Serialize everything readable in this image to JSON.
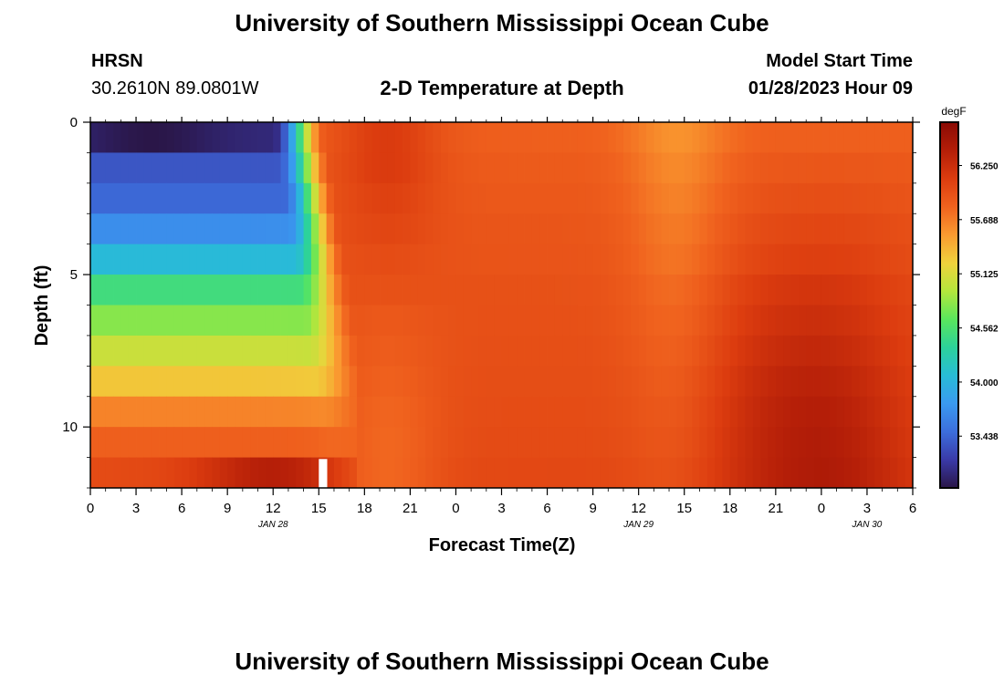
{
  "header": {
    "title": "University of Southern Mississippi Ocean Cube",
    "station": "HRSN",
    "coords": "30.2610N  89.0801W",
    "subtitle": "2-D Temperature at Depth",
    "model_label": "Model Start Time",
    "model_time": "01/28/2023 Hour 09"
  },
  "footer": {
    "title": "University of Southern Mississippi Ocean Cube"
  },
  "chart_data": {
    "type": "heatmap",
    "title": "2-D Temperature at Depth",
    "xlabel": "Forecast Time(Z)",
    "ylabel": "Depth (ft)",
    "x_ticks": [
      "0",
      "3",
      "6",
      "9",
      "12",
      "15",
      "18",
      "21",
      "0",
      "3",
      "6",
      "9",
      "12",
      "15",
      "18",
      "21",
      "0",
      "3",
      "6"
    ],
    "x_range_hours": [
      0,
      54
    ],
    "date_labels": [
      {
        "text": "JAN 28",
        "hour": 12
      },
      {
        "text": "JAN 29",
        "hour": 36
      },
      {
        "text": "JAN 30",
        "hour": 51
      }
    ],
    "y_ticks": [
      0,
      5,
      10
    ],
    "y_range_ft": [
      0,
      12
    ],
    "depth_levels_ft": [
      0.5,
      1.5,
      2.5,
      3.5,
      4.5,
      5.5,
      6.5,
      7.5,
      8.5,
      9.5,
      10.5,
      11.5
    ],
    "colorbar": {
      "unit": "degF",
      "tick_labels": [
        "56.250",
        "55.688",
        "55.125",
        "54.562",
        "54.000",
        "53.438"
      ],
      "tick_values": [
        56.25,
        55.688,
        55.125,
        54.562,
        54.0,
        53.438
      ],
      "min": 52.9,
      "max": 56.7,
      "colors": [
        "#2a1648",
        "#3a3aa8",
        "#3c6edc",
        "#3a9af0",
        "#28bcd6",
        "#2cd29a",
        "#5ae65c",
        "#b4e63c",
        "#f0d23c",
        "#fa9a30",
        "#f0621e",
        "#dc3c0f",
        "#b41e08",
        "#8a0a04"
      ]
    }
  }
}
